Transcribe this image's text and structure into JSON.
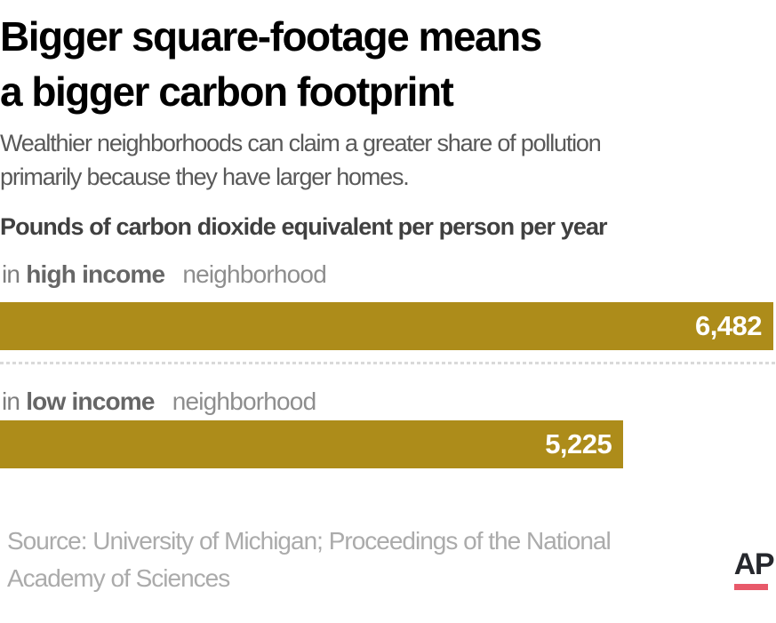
{
  "header": {
    "title_line1": "Bigger square-footage means",
    "title_line2": "a bigger carbon footprint",
    "subtitle_line1": "Wealthier neighborhoods can claim a greater share of pollution",
    "subtitle_line2": "primarily because they have larger homes."
  },
  "chart": {
    "axis_label": "Pounds of carbon dioxide equivalent per person per year",
    "bar_color": "#ad8c1a",
    "value_text_color": "#ffffff",
    "rows": [
      {
        "prefix": "in",
        "category": "high income",
        "suffix": "neighborhood",
        "value_label": "6,482"
      },
      {
        "prefix": "in",
        "category": "low income",
        "suffix": "neighborhood",
        "value_label": "5,225"
      }
    ]
  },
  "chart_data": {
    "type": "bar",
    "orientation": "horizontal",
    "title": "Bigger square-footage means a bigger carbon footprint",
    "subtitle": "Wealthier neighborhoods can claim a greater share of pollution primarily because they have larger homes.",
    "xlabel": "Pounds of carbon dioxide equivalent per person per year",
    "categories": [
      "in high income neighborhood",
      "in low income neighborhood"
    ],
    "values": [
      6482,
      5225
    ],
    "value_labels": [
      "6,482",
      "5,225"
    ],
    "xlim": [
      0,
      6482
    ],
    "grid": false,
    "legend": false,
    "bar_color": "#ad8c1a",
    "source": "Source: University of Michigan; Proceedings of the National Academy of Sciences"
  },
  "footer": {
    "source_line1": "Source: University of Michigan; Proceedings of the National",
    "source_line2": "Academy of Sciences",
    "logo_text": "AP",
    "logo_underline_color": "#e8596a"
  }
}
